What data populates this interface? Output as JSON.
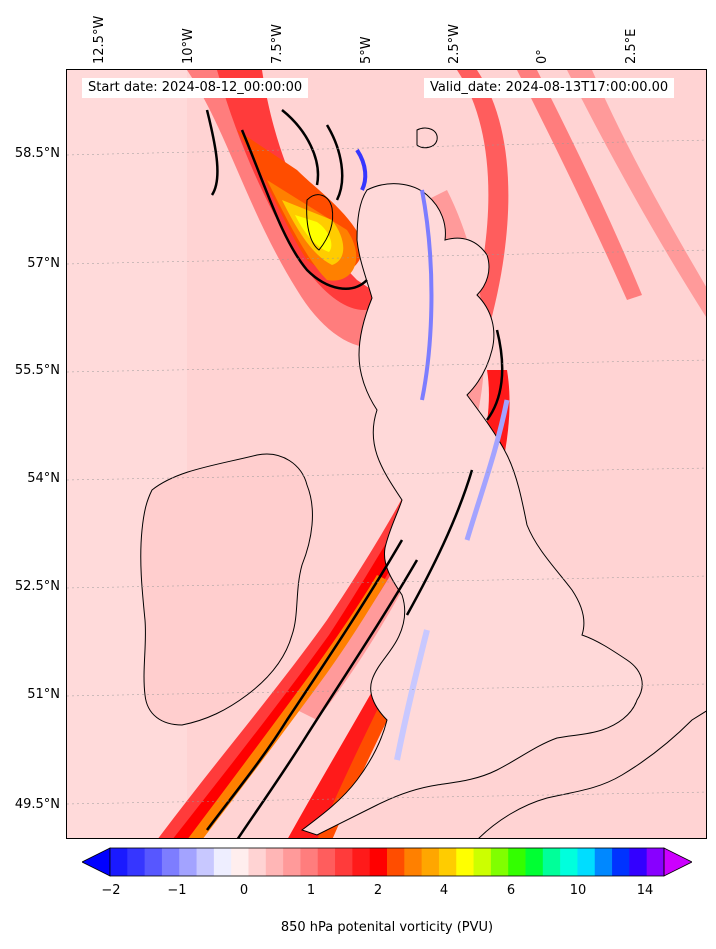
{
  "header": {
    "start_date": "Start date: 2024-08-12_00:00:00",
    "valid_date": "Valid_date: 2024-08-13T17:00:00.00"
  },
  "map": {
    "background_color": "#ffd3d3",
    "coastline_color": "#000000",
    "longitude_labels": [
      "12.5°W",
      "10°W",
      "7.5°W",
      "5°W",
      "2.5°W",
      "0°",
      "2.5°E"
    ],
    "latitude_labels": [
      "58.5°N",
      "57°N",
      "55.5°N",
      "54°N",
      "52.5°N",
      "51°N",
      "49.5°N"
    ],
    "features": [
      "pv-band-west-southwest",
      "pv-band-central",
      "pv-maximum-north-hebrides",
      "pv-band-north-sea"
    ]
  },
  "colorbar": {
    "label": "850 hPa potenital vorticity (PVU)",
    "tick_labels": [
      "−2",
      "−1",
      "0",
      "1",
      "2",
      "4",
      "6",
      "10",
      "14"
    ],
    "extend_low_color": "#0000ff",
    "extend_high_color": "#cc00ff",
    "colors": [
      "#1a1aff",
      "#3636ff",
      "#5757ff",
      "#7d7dff",
      "#a3a3ff",
      "#c8c8ff",
      "#eeeeff",
      "#ffeeee",
      "#ffd3d3",
      "#ffb6b6",
      "#ff9a9a",
      "#ff7d7d",
      "#ff5d5d",
      "#ff3b3b",
      "#ff1a1a",
      "#ff0000",
      "#ff4d00",
      "#ff8000",
      "#ffa600",
      "#ffcc00",
      "#ffff00",
      "#ccff00",
      "#80ff00",
      "#33ff00",
      "#00ff33",
      "#00ff99",
      "#00ffdd",
      "#00ddff",
      "#0088ff",
      "#0033ff",
      "#3300ff",
      "#8800ff"
    ]
  }
}
